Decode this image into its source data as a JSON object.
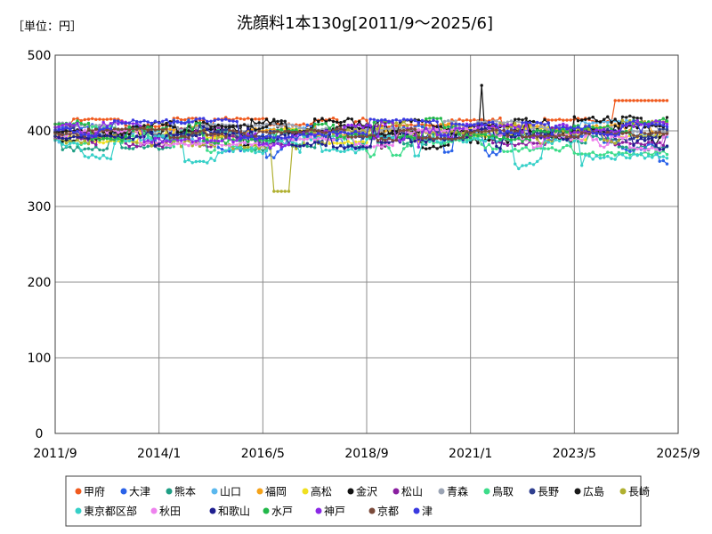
{
  "chart_data": {
    "type": "line",
    "unit_label": "［単位：円］",
    "title": "洗顔料1本130g[2011/9～2025/6]",
    "ylim": [
      0,
      500
    ],
    "y_ticks": [
      "0",
      "100",
      "200",
      "300",
      "400",
      "500"
    ],
    "x_ticks": [
      "2011/9",
      "2014/1",
      "2016/5",
      "2018/9",
      "2021/1",
      "2023/5",
      "2025/9"
    ],
    "grid": true,
    "legend_placement": "bottom",
    "series": [
      {
        "name": "甲府",
        "color": "#f05a1e",
        "base": 408,
        "amp": 8,
        "trend": 4,
        "seed": 1
      },
      {
        "name": "大津",
        "color": "#2a62e8",
        "base": 392,
        "amp": 22,
        "trend": -15,
        "seed": 2
      },
      {
        "name": "熊本",
        "color": "#1f9f85",
        "base": 390,
        "amp": 14,
        "trend": 0,
        "seed": 3
      },
      {
        "name": "山口",
        "color": "#5bb8ee",
        "base": 396,
        "amp": 12,
        "trend": 5,
        "seed": 4
      },
      {
        "name": "福岡",
        "color": "#f5a31a",
        "base": 398,
        "amp": 8,
        "trend": 5,
        "seed": 5
      },
      {
        "name": "高松",
        "color": "#f0e020",
        "base": 392,
        "amp": 9,
        "trend": 3,
        "seed": 6
      },
      {
        "name": "金沢",
        "color": "#111111",
        "base": 390,
        "amp": 20,
        "trend": 10,
        "seed": 7
      },
      {
        "name": "松山",
        "color": "#8a1fa0",
        "base": 394,
        "amp": 14,
        "trend": -5,
        "seed": 8
      },
      {
        "name": "青森",
        "color": "#9ba4b4",
        "base": 400,
        "amp": 10,
        "trend": 5,
        "seed": 9
      },
      {
        "name": "鳥取",
        "color": "#3ddc8a",
        "base": 392,
        "amp": 16,
        "trend": -20,
        "seed": 10
      },
      {
        "name": "長野",
        "color": "#2f3f8f",
        "base": 396,
        "amp": 10,
        "trend": 0,
        "seed": 11
      },
      {
        "name": "広島",
        "color": "#1a1a1a",
        "base": 400,
        "amp": 12,
        "trend": 8,
        "seed": 12
      },
      {
        "name": "長崎",
        "color": "#b0b030",
        "base": 385,
        "amp": 20,
        "trend": 10,
        "seed": 13
      },
      {
        "name": "東京都区部",
        "color": "#36d0c8",
        "base": 385,
        "amp": 20,
        "trend": -20,
        "seed": 14
      },
      {
        "name": "秋田",
        "color": "#ee82ee",
        "base": 392,
        "amp": 12,
        "trend": -5,
        "seed": 15
      },
      {
        "name": "和歌山",
        "color": "#1f1f8f",
        "base": 392,
        "amp": 14,
        "trend": -5,
        "seed": 16
      },
      {
        "name": "水戸",
        "color": "#22b84a",
        "base": 398,
        "amp": 14,
        "trend": 5,
        "seed": 17
      },
      {
        "name": "神戸",
        "color": "#8b28e6",
        "base": 395,
        "amp": 16,
        "trend": 0,
        "seed": 18
      },
      {
        "name": "京都",
        "color": "#7a4a3a",
        "base": 396,
        "amp": 8,
        "trend": 0,
        "seed": 19
      },
      {
        "name": "津",
        "color": "#3a3ae0",
        "base": 402,
        "amp": 12,
        "trend": 2,
        "seed": 20
      }
    ]
  }
}
